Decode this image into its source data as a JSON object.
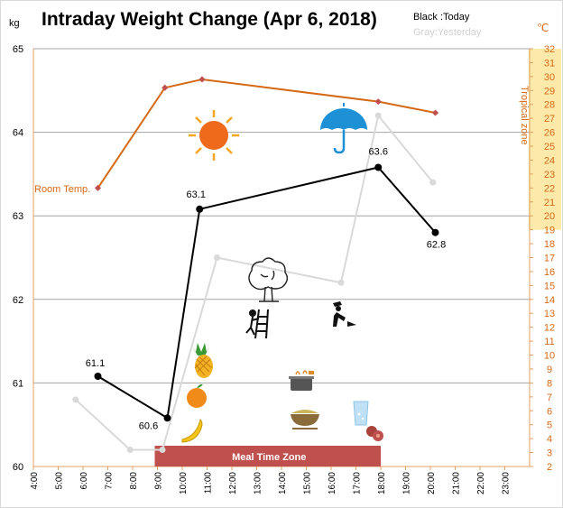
{
  "chart_data": {
    "type": "line",
    "title": "Intraday Weight Change (Apr 6, 2018)",
    "legend": [
      "Black :Today",
      "Gray:Yesterday"
    ],
    "left_axis": {
      "unit": "kg",
      "range": [
        60,
        65
      ],
      "ticks": [
        "60",
        "61",
        "62",
        "63",
        "64",
        "65"
      ]
    },
    "right_axis": {
      "unit": "℃",
      "range": [
        2,
        32
      ],
      "ticks": [
        "2",
        "3",
        "4",
        "5",
        "6",
        "7",
        "8",
        "9",
        "10",
        "11",
        "12",
        "13",
        "14",
        "15",
        "16",
        "17",
        "18",
        "19",
        "20",
        "21",
        "22",
        "23",
        "24",
        "25",
        "26",
        "27",
        "28",
        "29",
        "30",
        "31",
        "32"
      ],
      "highlight_from": 19,
      "highlight_to": 32
    },
    "x_axis": {
      "range_hours": [
        4,
        24
      ],
      "ticks": [
        "4:00",
        "5:00",
        "6:00",
        "7:00",
        "8:00",
        "9:00",
        "10:00",
        "11:00",
        "12:00",
        "13:00",
        "14:00",
        "15:00",
        "16:00",
        "17:00",
        "18:00",
        "19:00",
        "20:00",
        "21:00",
        "22:00",
        "23:00"
      ]
    },
    "series": [
      {
        "name": "Today",
        "axis": "left",
        "color": "#000000",
        "points": [
          {
            "x": 6.6,
            "y": 61.08
          },
          {
            "x": 9.4,
            "y": 60.58
          },
          {
            "x": 10.7,
            "y": 63.08
          },
          {
            "x": 17.9,
            "y": 63.58
          },
          {
            "x": 20.2,
            "y": 62.8
          }
        ],
        "labels": [
          "61.1",
          "60.6",
          "63.1",
          "63.6",
          "62.8"
        ]
      },
      {
        "name": "Yesterday",
        "axis": "left",
        "color": "#d9d9d9",
        "points": [
          {
            "x": 5.7,
            "y": 60.8
          },
          {
            "x": 7.9,
            "y": 60.2
          },
          {
            "x": 9.2,
            "y": 60.2
          },
          {
            "x": 11.4,
            "y": 62.5
          },
          {
            "x": 16.4,
            "y": 62.2
          },
          {
            "x": 17.9,
            "y": 64.2
          },
          {
            "x": 20.1,
            "y": 63.4
          }
        ]
      },
      {
        "name": "Temperature",
        "axis": "right",
        "color": "#d46a16",
        "points": [
          {
            "x": 6.6,
            "y": 22
          },
          {
            "x": 9.3,
            "y": 29.2
          },
          {
            "x": 10.8,
            "y": 29.8
          },
          {
            "x": 17.9,
            "y": 28.2
          },
          {
            "x": 20.2,
            "y": 27.4
          }
        ]
      }
    ],
    "annotations": {
      "room_temp": "Room Temp.",
      "tropical_zone": "Tropical zone",
      "meal_time_zone": "Meal Time Zone"
    },
    "meal_zone_hours": [
      9.0,
      18.0
    ],
    "colors": {
      "temperature": "#d46a16",
      "meal_zone": "#c0504d",
      "tropical_band": "#fde9a9",
      "marker_temp": "#c0504d"
    },
    "icons": [
      "sun-icon",
      "umbrella-icon",
      "tree-icon",
      "climbing-person-icon",
      "gardening-person-icon",
      "pineapple-icon",
      "orange-icon",
      "banana-icon",
      "cooking-pot-icon",
      "food-bowl-icon",
      "water-glass-icon",
      "sausage-icon"
    ]
  }
}
